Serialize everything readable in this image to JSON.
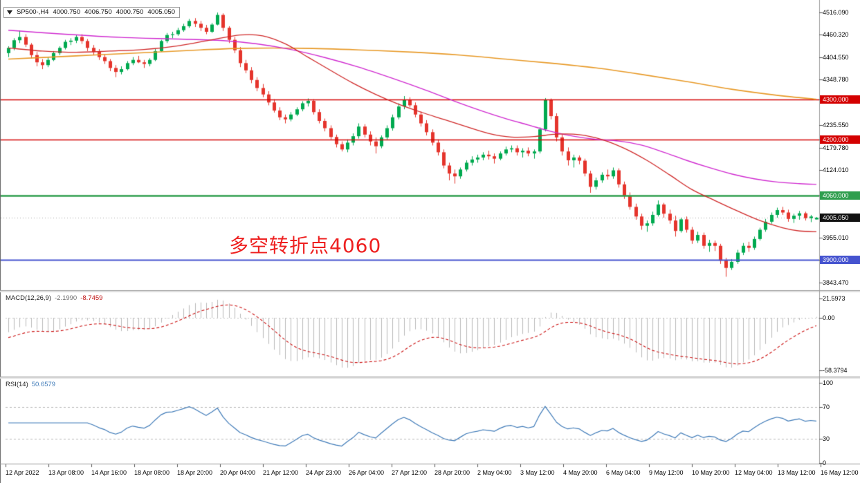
{
  "header": {
    "display": "SP500-,H4",
    "open": "4000.750",
    "high": "4006.750",
    "low": "4000.750",
    "close": "4005.050"
  },
  "annotation": {
    "text": "多空转折点4060",
    "color": "#ee2020"
  },
  "macd": {
    "label": "MACD(12,26,9)",
    "value_main": "-2.1990",
    "value_signal": "-8.7459",
    "scale": [
      {
        "label": "21.5973",
        "value": 21.5973
      },
      {
        "label": "0.00",
        "value": 0
      },
      {
        "label": "-58.3794",
        "value": -58.3794
      }
    ]
  },
  "rsi": {
    "label": "RSI(14)",
    "value": "50.6579",
    "levels": [
      70,
      30
    ],
    "scale": [
      {
        "label": "100",
        "value": 100
      },
      {
        "label": "70",
        "value": 70
      },
      {
        "label": "30",
        "value": 30
      },
      {
        "label": "0",
        "value": 0
      }
    ]
  },
  "time_axis": {
    "labels": [
      "12 Apr 2022",
      "13 Apr 08:00",
      "14 Apr 16:00",
      "18 Apr 08:00",
      "18 Apr 20:00",
      "20 Apr 04:00",
      "21 Apr 12:00",
      "24 Apr 23:00",
      "26 Apr 04:00",
      "27 Apr 12:00",
      "28 Apr 20:00",
      "2 May 04:00",
      "3 May 12:00",
      "4 May 20:00",
      "6 May 04:00",
      "9 May 12:00",
      "10 May 20:00",
      "12 May 04:00",
      "13 May 12:00",
      "16 May 12:00"
    ]
  },
  "chart_data": {
    "type": "candlestick",
    "symbol": "SP500-",
    "timeframe": "H4",
    "current_ohlc": [
      4000.75,
      4006.75,
      4000.75,
      4005.05
    ],
    "visible_price_range": [
      3833,
      4530
    ],
    "colors": {
      "up": "#00a94f",
      "down": "#e5342c",
      "macd_hist": "#b9b9b9",
      "macd_signal": "#cc1111",
      "rsi_line": "#3e7ab8"
    },
    "y_axis": {
      "plain": [
        {
          "label": "4516.090",
          "price": 4516.09
        },
        {
          "label": "4460.320",
          "price": 4460.32
        },
        {
          "label": "4404.550",
          "price": 4404.55
        },
        {
          "label": "4348.780",
          "price": 4348.78
        },
        {
          "label": "4235.550",
          "price": 4235.55
        },
        {
          "label": "4179.780",
          "price": 4179.78
        },
        {
          "label": "4124.010",
          "price": 4124.01
        },
        {
          "label": "3955.010",
          "price": 3955.01
        },
        {
          "label": "3843.470",
          "price": 3843.47
        }
      ]
    },
    "hlines": [
      {
        "label": "4300.000",
        "price": 4300,
        "color": "#d40000",
        "width": 1.6
      },
      {
        "label": "4200.000",
        "price": 4200,
        "color": "#d40000",
        "width": 1.6
      },
      {
        "label": "4060.000",
        "price": 4060,
        "color": "#2f9e4e",
        "width": 2.4
      },
      {
        "label": "3900.000",
        "price": 3900,
        "color": "#4553cf",
        "width": 2
      }
    ],
    "current_price": {
      "label": "4005.050",
      "price": 4005.05,
      "bg": "#111111"
    },
    "ma_lines": [
      {
        "name": "ma-slow",
        "color": "#e89a28",
        "width": 1.6,
        "points": [
          [
            0,
            4400
          ],
          [
            12,
            4408
          ],
          [
            24,
            4416
          ],
          [
            34,
            4423
          ],
          [
            42,
            4427
          ],
          [
            52,
            4427
          ],
          [
            62,
            4423
          ],
          [
            72,
            4417
          ],
          [
            80,
            4410
          ],
          [
            88,
            4400
          ],
          [
            96,
            4390
          ],
          [
            104,
            4378
          ],
          [
            112,
            4362
          ],
          [
            120,
            4344
          ],
          [
            128,
            4325
          ],
          [
            136,
            4310
          ],
          [
            143,
            4300
          ]
        ]
      },
      {
        "name": "ma-medium",
        "color": "#d02ad0",
        "width": 1.4,
        "points": [
          [
            0,
            4472
          ],
          [
            10,
            4462
          ],
          [
            20,
            4454
          ],
          [
            30,
            4450
          ],
          [
            38,
            4446
          ],
          [
            44,
            4438
          ],
          [
            50,
            4424
          ],
          [
            56,
            4404
          ],
          [
            62,
            4380
          ],
          [
            68,
            4352
          ],
          [
            74,
            4322
          ],
          [
            79,
            4295
          ],
          [
            84,
            4270
          ],
          [
            88,
            4252
          ],
          [
            92,
            4236
          ],
          [
            96,
            4220
          ],
          [
            100,
            4208
          ],
          [
            104,
            4200
          ],
          [
            108,
            4196
          ],
          [
            112,
            4186
          ],
          [
            116,
            4168
          ],
          [
            120,
            4148
          ],
          [
            124,
            4130
          ],
          [
            128,
            4114
          ],
          [
            132,
            4102
          ],
          [
            136,
            4094
          ],
          [
            140,
            4090
          ],
          [
            143,
            4088
          ]
        ]
      },
      {
        "name": "ma-fast",
        "color": "#d02828",
        "width": 1.3,
        "points": [
          [
            0,
            4428
          ],
          [
            6,
            4420
          ],
          [
            12,
            4417
          ],
          [
            18,
            4420
          ],
          [
            24,
            4424
          ],
          [
            30,
            4433
          ],
          [
            36,
            4448
          ],
          [
            41,
            4460
          ],
          [
            45,
            4458
          ],
          [
            49,
            4438
          ],
          [
            53,
            4405
          ],
          [
            57,
            4372
          ],
          [
            61,
            4340
          ],
          [
            65,
            4312
          ],
          [
            69,
            4288
          ],
          [
            73,
            4268
          ],
          [
            77,
            4250
          ],
          [
            81,
            4232
          ],
          [
            85,
            4215
          ],
          [
            89,
            4206
          ],
          [
            93,
            4207
          ],
          [
            97,
            4213
          ],
          [
            101,
            4212
          ],
          [
            105,
            4200
          ],
          [
            109,
            4178
          ],
          [
            113,
            4148
          ],
          [
            117,
            4112
          ],
          [
            121,
            4075
          ],
          [
            125,
            4048
          ],
          [
            129,
            4022
          ],
          [
            133,
            3998
          ],
          [
            137,
            3980
          ],
          [
            140,
            3972
          ],
          [
            143,
            3970
          ]
        ]
      }
    ],
    "candles": [
      [
        4415,
        4432,
        4405,
        4428
      ],
      [
        4428,
        4452,
        4422,
        4447
      ],
      [
        4447,
        4471,
        4440,
        4455
      ],
      [
        4455,
        4462,
        4430,
        4436
      ],
      [
        4436,
        4440,
        4402,
        4410
      ],
      [
        4410,
        4418,
        4382,
        4392
      ],
      [
        4392,
        4400,
        4375,
        4385
      ],
      [
        4385,
        4405,
        4380,
        4398
      ],
      [
        4398,
        4420,
        4395,
        4415
      ],
      [
        4415,
        4432,
        4410,
        4428
      ],
      [
        4428,
        4448,
        4424,
        4443
      ],
      [
        4443,
        4452,
        4435,
        4446
      ],
      [
        4446,
        4460,
        4440,
        4455
      ],
      [
        4455,
        4462,
        4438,
        4445
      ],
      [
        4445,
        4450,
        4420,
        4428
      ],
      [
        4428,
        4435,
        4410,
        4418
      ],
      [
        4418,
        4425,
        4398,
        4405
      ],
      [
        4405,
        4412,
        4388,
        4395
      ],
      [
        4395,
        4400,
        4370,
        4378
      ],
      [
        4378,
        4385,
        4355,
        4368
      ],
      [
        4368,
        4382,
        4362,
        4375
      ],
      [
        4375,
        4395,
        4372,
        4390
      ],
      [
        4390,
        4405,
        4385,
        4398
      ],
      [
        4398,
        4408,
        4390,
        4392
      ],
      [
        4392,
        4398,
        4378,
        4388
      ],
      [
        4388,
        4402,
        4382,
        4398
      ],
      [
        4398,
        4425,
        4395,
        4420
      ],
      [
        4420,
        4448,
        4418,
        4445
      ],
      [
        4445,
        4465,
        4440,
        4460
      ],
      [
        4460,
        4468,
        4452,
        4462
      ],
      [
        4462,
        4478,
        4458,
        4472
      ],
      [
        4472,
        4488,
        4468,
        4482
      ],
      [
        4482,
        4500,
        4478,
        4495
      ],
      [
        4495,
        4502,
        4480,
        4488
      ],
      [
        4488,
        4495,
        4470,
        4478
      ],
      [
        4478,
        4485,
        4462,
        4468
      ],
      [
        4468,
        4490,
        4465,
        4486
      ],
      [
        4486,
        4516,
        4484,
        4510
      ],
      [
        4510,
        4514,
        4470,
        4478
      ],
      [
        4478,
        4482,
        4440,
        4448
      ],
      [
        4448,
        4455,
        4415,
        4422
      ],
      [
        4422,
        4430,
        4380,
        4390
      ],
      [
        4390,
        4398,
        4365,
        4372
      ],
      [
        4372,
        4380,
        4340,
        4348
      ],
      [
        4348,
        4355,
        4320,
        4328
      ],
      [
        4328,
        4338,
        4305,
        4312
      ],
      [
        4312,
        4320,
        4285,
        4292
      ],
      [
        4292,
        4300,
        4267,
        4272
      ],
      [
        4272,
        4280,
        4248,
        4255
      ],
      [
        4255,
        4262,
        4240,
        4250
      ],
      [
        4250,
        4268,
        4245,
        4262
      ],
      [
        4262,
        4280,
        4258,
        4275
      ],
      [
        4275,
        4295,
        4270,
        4290
      ],
      [
        4290,
        4302,
        4282,
        4296
      ],
      [
        4296,
        4300,
        4262,
        4268
      ],
      [
        4268,
        4275,
        4240,
        4246
      ],
      [
        4246,
        4252,
        4220,
        4228
      ],
      [
        4228,
        4235,
        4200,
        4206
      ],
      [
        4206,
        4212,
        4180,
        4188
      ],
      [
        4188,
        4195,
        4170,
        4175
      ],
      [
        4175,
        4200,
        4168,
        4192
      ],
      [
        4192,
        4215,
        4185,
        4208
      ],
      [
        4208,
        4240,
        4202,
        4232
      ],
      [
        4232,
        4238,
        4205,
        4212
      ],
      [
        4212,
        4220,
        4185,
        4195
      ],
      [
        4195,
        4205,
        4165,
        4183
      ],
      [
        4183,
        4210,
        4178,
        4205
      ],
      [
        4205,
        4235,
        4200,
        4228
      ],
      [
        4228,
        4262,
        4222,
        4255
      ],
      [
        4255,
        4290,
        4250,
        4282
      ],
      [
        4282,
        4308,
        4275,
        4298
      ],
      [
        4298,
        4305,
        4280,
        4285
      ],
      [
        4285,
        4292,
        4255,
        4262
      ],
      [
        4262,
        4270,
        4232,
        4240
      ],
      [
        4240,
        4248,
        4210,
        4218
      ],
      [
        4218,
        4225,
        4185,
        4192
      ],
      [
        4192,
        4200,
        4160,
        4168
      ],
      [
        4168,
        4175,
        4128,
        4135
      ],
      [
        4135,
        4142,
        4098,
        4115
      ],
      [
        4115,
        4125,
        4090,
        4108
      ],
      [
        4108,
        4130,
        4102,
        4125
      ],
      [
        4125,
        4148,
        4120,
        4142
      ],
      [
        4142,
        4158,
        4135,
        4150
      ],
      [
        4150,
        4162,
        4142,
        4155
      ],
      [
        4155,
        4168,
        4148,
        4162
      ],
      [
        4162,
        4172,
        4150,
        4158
      ],
      [
        4158,
        4165,
        4140,
        4152
      ],
      [
        4152,
        4170,
        4148,
        4165
      ],
      [
        4165,
        4182,
        4160,
        4175
      ],
      [
        4175,
        4185,
        4168,
        4178
      ],
      [
        4178,
        4185,
        4160,
        4168
      ],
      [
        4168,
        4178,
        4155,
        4172
      ],
      [
        4172,
        4180,
        4158,
        4165
      ],
      [
        4165,
        4175,
        4152,
        4170
      ],
      [
        4170,
        4230,
        4165,
        4225
      ],
      [
        4225,
        4303,
        4220,
        4298
      ],
      [
        4298,
        4302,
        4250,
        4258
      ],
      [
        4258,
        4265,
        4195,
        4205
      ],
      [
        4205,
        4212,
        4160,
        4170
      ],
      [
        4170,
        4180,
        4135,
        4148
      ],
      [
        4148,
        4162,
        4130,
        4155
      ],
      [
        4155,
        4160,
        4138,
        4147
      ],
      [
        4147,
        4152,
        4108,
        4115
      ],
      [
        4115,
        4122,
        4067,
        4082
      ],
      [
        4082,
        4105,
        4075,
        4098
      ],
      [
        4098,
        4118,
        4092,
        4112
      ],
      [
        4112,
        4125,
        4100,
        4108
      ],
      [
        4108,
        4130,
        4102,
        4123
      ],
      [
        4123,
        4128,
        4080,
        4088
      ],
      [
        4088,
        4095,
        4052,
        4060
      ],
      [
        4060,
        4068,
        4025,
        4032
      ],
      [
        4032,
        4040,
        4000,
        4008
      ],
      [
        4008,
        4015,
        3975,
        3985
      ],
      [
        3985,
        3998,
        3970,
        3991
      ],
      [
        3991,
        4020,
        3985,
        4012
      ],
      [
        4012,
        4048,
        4008,
        4038
      ],
      [
        4038,
        4042,
        4005,
        4015
      ],
      [
        4015,
        4025,
        3990,
        3998
      ],
      [
        3998,
        4010,
        3958,
        3972
      ],
      [
        3972,
        4005,
        3968,
        4001
      ],
      [
        4001,
        4008,
        3968,
        3975
      ],
      [
        3975,
        3982,
        3940,
        3948
      ],
      [
        3948,
        3970,
        3942,
        3962
      ],
      [
        3962,
        3968,
        3928,
        3935
      ],
      [
        3935,
        3950,
        3920,
        3942
      ],
      [
        3942,
        3948,
        3922,
        3935
      ],
      [
        3935,
        3940,
        3890,
        3898
      ],
      [
        3898,
        3905,
        3858,
        3880
      ],
      [
        3880,
        3902,
        3875,
        3895
      ],
      [
        3895,
        3925,
        3890,
        3918
      ],
      [
        3918,
        3942,
        3912,
        3935
      ],
      [
        3935,
        3945,
        3920,
        3930
      ],
      [
        3930,
        3958,
        3925,
        3952
      ],
      [
        3952,
        3980,
        3948,
        3975
      ],
      [
        3975,
        4002,
        3970,
        3995
      ],
      [
        3995,
        4018,
        3990,
        4012
      ],
      [
        4012,
        4030,
        4005,
        4024
      ],
      [
        4024,
        4032,
        4012,
        4018
      ],
      [
        4018,
        4025,
        3995,
        4002
      ],
      [
        4002,
        4015,
        3992,
        4010
      ],
      [
        4010,
        4022,
        4000,
        4016
      ],
      [
        4016,
        4020,
        3998,
        4004
      ],
      [
        4004,
        4012,
        3994,
        4008
      ],
      [
        4000.75,
        4006.75,
        4000.75,
        4005.05
      ]
    ]
  }
}
